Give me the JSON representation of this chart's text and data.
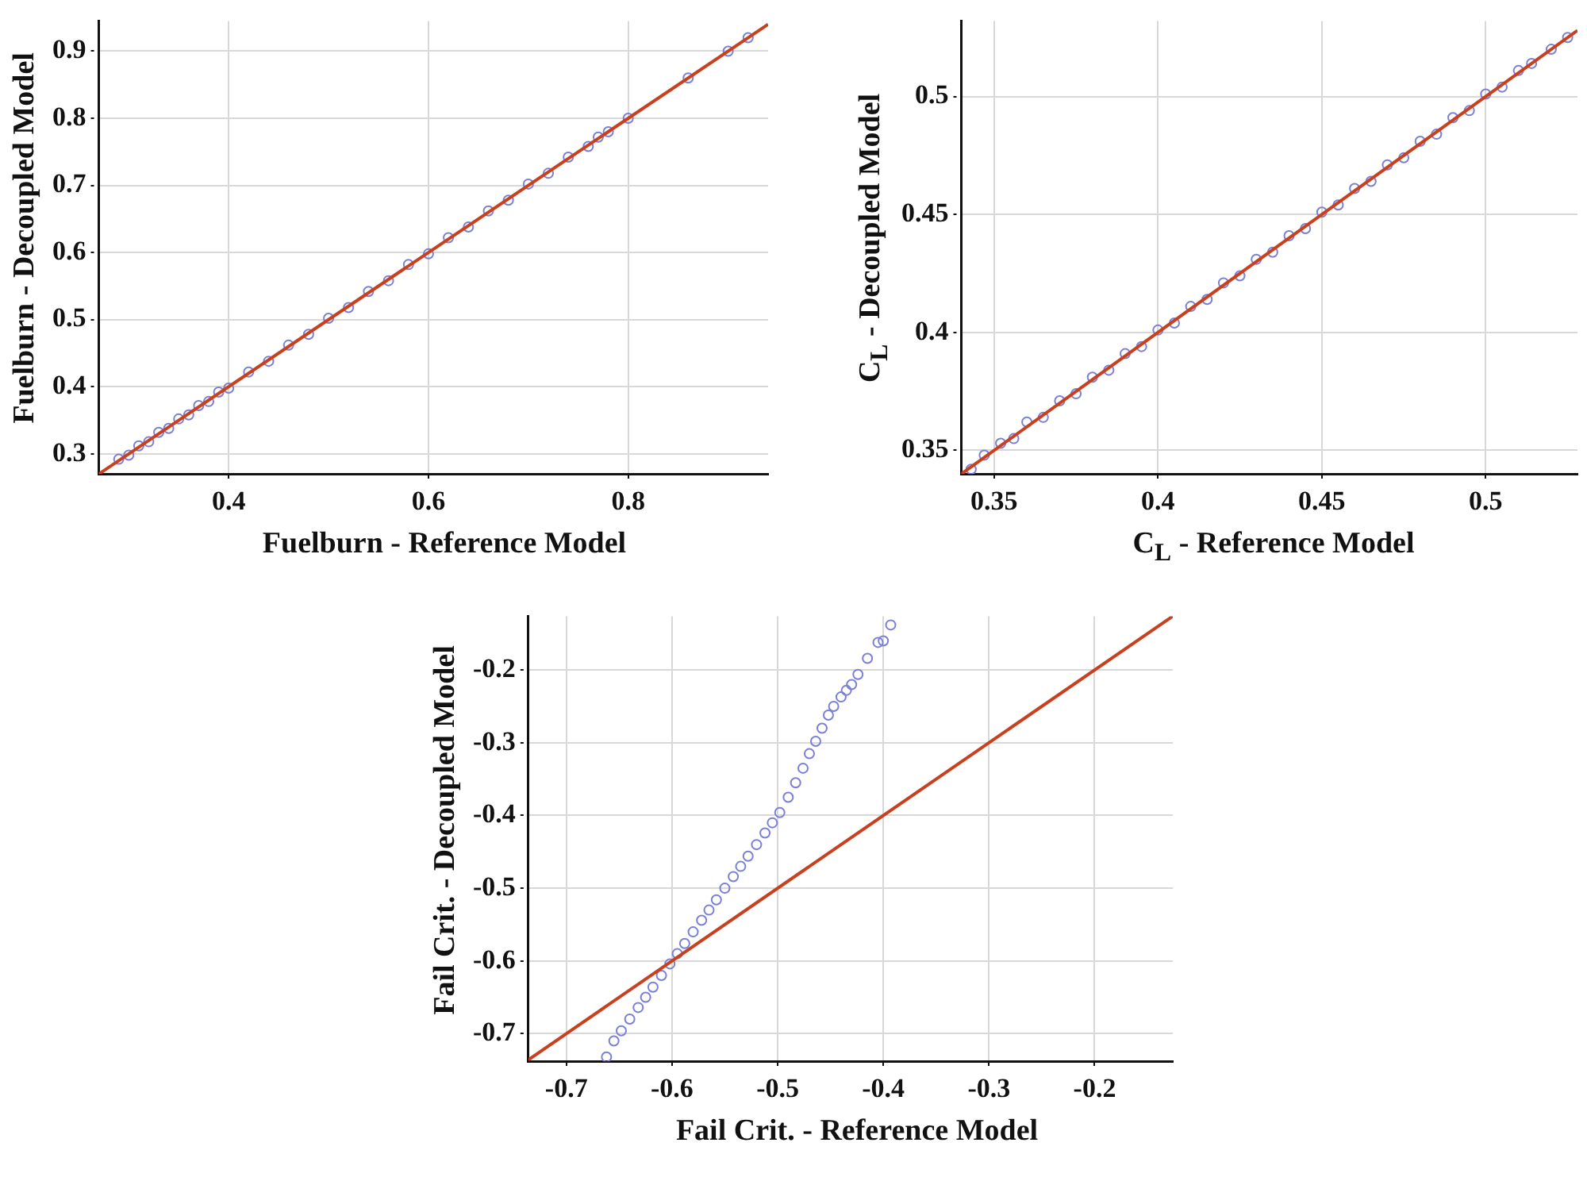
{
  "chart_data": [
    {
      "type": "scatter",
      "xlabel": "Fuelburn - Reference Model",
      "ylabel": "Fuelburn - Decoupled Model",
      "xlim": [
        0.27,
        0.94
      ],
      "ylim": [
        0.27,
        0.945
      ],
      "xticks": [
        0.4,
        0.6,
        0.8
      ],
      "yticks": [
        0.3,
        0.4,
        0.5,
        0.6,
        0.7,
        0.8,
        0.9
      ],
      "grid": true,
      "marker": "circle",
      "series": [
        {
          "color": "#7b7fd6",
          "x": [
            0.29,
            0.3,
            0.31,
            0.32,
            0.33,
            0.34,
            0.35,
            0.36,
            0.37,
            0.38,
            0.39,
            0.4,
            0.42,
            0.44,
            0.46,
            0.48,
            0.5,
            0.52,
            0.54,
            0.56,
            0.58,
            0.6,
            0.62,
            0.64,
            0.66,
            0.68,
            0.7,
            0.72,
            0.74,
            0.76,
            0.77,
            0.78,
            0.8,
            0.86,
            0.9,
            0.92
          ],
          "values": [
            0.292,
            0.298,
            0.312,
            0.318,
            0.332,
            0.338,
            0.352,
            0.358,
            0.372,
            0.378,
            0.392,
            0.398,
            0.422,
            0.438,
            0.462,
            0.478,
            0.502,
            0.518,
            0.542,
            0.558,
            0.582,
            0.598,
            0.622,
            0.638,
            0.662,
            0.678,
            0.702,
            0.718,
            0.742,
            0.758,
            0.772,
            0.78,
            0.8,
            0.86,
            0.9,
            0.92
          ]
        },
        {
          "type": "line",
          "marker": "none",
          "color": "#c8401e",
          "x": [
            0.27,
            0.94
          ],
          "values": [
            0.27,
            0.94
          ]
        }
      ]
    },
    {
      "type": "scatter",
      "xlabel": "C$_{L}$ - Reference Model",
      "ylabel": "C$_{L}$ - Decoupled Model",
      "xlim": [
        0.34,
        0.528
      ],
      "ylim": [
        0.34,
        0.532
      ],
      "xticks": [
        0.35,
        0.4,
        0.45,
        0.5
      ],
      "yticks": [
        0.35,
        0.4,
        0.45,
        0.5
      ],
      "grid": true,
      "marker": "circle",
      "series": [
        {
          "color": "#7b7fd6",
          "x": [
            0.343,
            0.347,
            0.352,
            0.356,
            0.36,
            0.365,
            0.37,
            0.375,
            0.38,
            0.385,
            0.39,
            0.395,
            0.4,
            0.405,
            0.41,
            0.415,
            0.42,
            0.425,
            0.43,
            0.435,
            0.44,
            0.445,
            0.45,
            0.455,
            0.46,
            0.465,
            0.47,
            0.475,
            0.48,
            0.485,
            0.49,
            0.495,
            0.5,
            0.505,
            0.51,
            0.514,
            0.52,
            0.525
          ],
          "values": [
            0.342,
            0.348,
            0.353,
            0.355,
            0.362,
            0.364,
            0.371,
            0.374,
            0.381,
            0.384,
            0.391,
            0.394,
            0.401,
            0.404,
            0.411,
            0.414,
            0.421,
            0.424,
            0.431,
            0.434,
            0.441,
            0.444,
            0.451,
            0.454,
            0.461,
            0.464,
            0.471,
            0.474,
            0.481,
            0.484,
            0.491,
            0.494,
            0.501,
            0.504,
            0.511,
            0.514,
            0.52,
            0.525
          ]
        },
        {
          "type": "line",
          "marker": "none",
          "color": "#c8401e",
          "x": [
            0.34,
            0.528
          ],
          "values": [
            0.34,
            0.528
          ]
        }
      ]
    },
    {
      "type": "scatter",
      "xlabel": "Fail Crit. - Reference Model",
      "ylabel": "Fail Crit. - Decoupled Model",
      "xlim": [
        -0.736,
        -0.126
      ],
      "ylim": [
        -0.738,
        -0.126
      ],
      "xticks": [
        -0.7,
        -0.6,
        -0.5,
        -0.4,
        -0.3,
        -0.2
      ],
      "yticks": [
        -0.7,
        -0.6,
        -0.5,
        -0.4,
        -0.3,
        -0.2
      ],
      "grid": true,
      "marker": "circle",
      "series": [
        {
          "color": "#7b7fd6",
          "x": [
            -0.662,
            -0.655,
            -0.648,
            -0.64,
            -0.632,
            -0.625,
            -0.618,
            -0.61,
            -0.602,
            -0.595,
            -0.588,
            -0.58,
            -0.572,
            -0.565,
            -0.558,
            -0.55,
            -0.542,
            -0.535,
            -0.528,
            -0.52,
            -0.512,
            -0.505,
            -0.498,
            -0.49,
            -0.483,
            -0.476,
            -0.47,
            -0.464,
            -0.458,
            -0.452,
            -0.447,
            -0.44,
            -0.435,
            -0.43,
            -0.424,
            -0.415,
            -0.405,
            -0.4,
            -0.393
          ],
          "values": [
            -0.732,
            -0.71,
            -0.696,
            -0.68,
            -0.664,
            -0.65,
            -0.636,
            -0.62,
            -0.604,
            -0.59,
            -0.576,
            -0.56,
            -0.544,
            -0.53,
            -0.516,
            -0.5,
            -0.484,
            -0.47,
            -0.456,
            -0.44,
            -0.424,
            -0.41,
            -0.396,
            -0.375,
            -0.355,
            -0.335,
            -0.315,
            -0.298,
            -0.28,
            -0.262,
            -0.25,
            -0.237,
            -0.228,
            -0.22,
            -0.206,
            -0.184,
            -0.162,
            -0.16,
            -0.138
          ]
        },
        {
          "type": "line",
          "marker": "none",
          "color": "#c8401e",
          "x": [
            -0.736,
            -0.126
          ],
          "values": [
            -0.736,
            -0.126
          ]
        }
      ]
    }
  ]
}
